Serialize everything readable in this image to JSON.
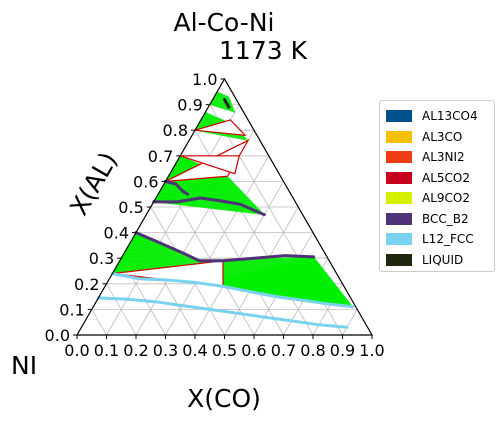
{
  "chart_data": {
    "type": "ternary-phase-diagram",
    "title": "Al-Co-Ni",
    "subtitle": "1173  K",
    "xlabel": "X(CO)",
    "ylabel": "X(AL)",
    "corner_label": "NI",
    "xticks": [
      "0.0",
      "0.1",
      "0.2",
      "0.3",
      "0.4",
      "0.5",
      "0.6",
      "0.7",
      "0.8",
      "0.9",
      "1.0"
    ],
    "yticks": [
      "0.0",
      "0.1",
      "0.2",
      "0.3",
      "0.4",
      "0.5",
      "0.6",
      "0.7",
      "0.8",
      "0.9",
      "1.0"
    ],
    "xlim": [
      0,
      1
    ],
    "ylim": [
      0,
      1
    ],
    "grid": true,
    "legend_position": "right",
    "legend": [
      {
        "name": "AL13CO4",
        "color": "#00508c"
      },
      {
        "name": "AL3CO",
        "color": "#f5c000"
      },
      {
        "name": "AL3NI2",
        "color": "#f03c14"
      },
      {
        "name": "AL5CO2",
        "color": "#c8001e"
      },
      {
        "name": "AL9CO2",
        "color": "#d7f000"
      },
      {
        "name": "BCC_B2",
        "color": "#503278"
      },
      {
        "name": "L12_FCC",
        "color": "#78d2f0"
      },
      {
        "name": "LIQUID",
        "color": "#1e280f"
      }
    ],
    "phase_boundaries": [
      {
        "phase": "L12_FCC",
        "color": "#78d2f0",
        "points": [
          [
            0.0,
            0.24
          ],
          [
            0.1,
            0.22
          ],
          [
            0.2,
            0.215
          ],
          [
            0.3,
            0.205
          ],
          [
            0.4,
            0.19
          ],
          [
            0.5,
            0.17
          ],
          [
            0.6,
            0.15
          ],
          [
            0.7,
            0.135
          ],
          [
            0.8,
            0.12
          ],
          [
            0.88,
            0.11
          ]
        ]
      },
      {
        "phase": "L12_FCC",
        "color": "#78d2f0",
        "points": [
          [
            0.0,
            0.145
          ],
          [
            0.1,
            0.14
          ],
          [
            0.2,
            0.13
          ],
          [
            0.3,
            0.115
          ],
          [
            0.4,
            0.1
          ],
          [
            0.5,
            0.085
          ],
          [
            0.6,
            0.07
          ],
          [
            0.7,
            0.055
          ],
          [
            0.8,
            0.04
          ],
          [
            0.9,
            0.03
          ]
        ]
      },
      {
        "phase": "BCC_B2",
        "color": "#503278",
        "points": [
          [
            0.0,
            0.4
          ],
          [
            0.1,
            0.36
          ],
          [
            0.2,
            0.32
          ],
          [
            0.27,
            0.29
          ],
          [
            0.35,
            0.29
          ],
          [
            0.45,
            0.3
          ],
          [
            0.55,
            0.31
          ],
          [
            0.65,
            0.305
          ]
        ]
      },
      {
        "phase": "BCC_B2",
        "color": "#503278",
        "points": [
          [
            0.0,
            0.52
          ],
          [
            0.08,
            0.52
          ],
          [
            0.15,
            0.535
          ],
          [
            0.22,
            0.525
          ],
          [
            0.3,
            0.51
          ],
          [
            0.4,
            0.47
          ]
        ]
      },
      {
        "phase": "BCC_B2",
        "color": "#503278",
        "points": [
          [
            0.0,
            0.6
          ],
          [
            0.04,
            0.59
          ],
          [
            0.08,
            0.56
          ],
          [
            0.1,
            0.55
          ]
        ]
      },
      {
        "phase": "LIQUID",
        "color": "#1e280f",
        "points": [
          [
            0.04,
            0.92
          ],
          [
            0.06,
            0.9
          ],
          [
            0.07,
            0.89
          ]
        ]
      }
    ],
    "two_phase_regions": [
      {
        "polygon": [
          [
            0.0,
            0.24
          ],
          [
            0.27,
            0.29
          ],
          [
            0.65,
            0.305
          ],
          [
            0.88,
            0.11
          ],
          [
            0.3,
            0.205
          ]
        ]
      },
      {
        "polygon": [
          [
            0.0,
            0.4
          ],
          [
            0.27,
            0.29
          ],
          [
            0.35,
            0.29
          ],
          [
            0.3,
            0.205
          ],
          [
            0.0,
            0.24
          ]
        ]
      },
      {
        "polygon": [
          [
            0.0,
            0.52
          ],
          [
            0.4,
            0.47
          ],
          [
            0.2,
            0.62
          ],
          [
            0.0,
            0.7
          ]
        ]
      },
      {
        "polygon": [
          [
            0.0,
            0.8
          ],
          [
            0.2,
            0.76
          ],
          [
            0.1,
            0.83
          ],
          [
            0.0,
            0.87
          ]
        ]
      },
      {
        "polygon": [
          [
            0.0,
            0.9
          ],
          [
            0.1,
            0.87
          ],
          [
            0.05,
            0.93
          ],
          [
            0.0,
            0.95
          ]
        ]
      }
    ],
    "three_phase_triangles": [
      {
        "points": [
          [
            0.0,
            0.24
          ],
          [
            0.35,
            0.29
          ],
          [
            0.4,
            0.19
          ]
        ]
      },
      {
        "points": [
          [
            0.0,
            0.6
          ],
          [
            0.2,
            0.76
          ],
          [
            0.2,
            0.62
          ]
        ]
      },
      {
        "points": [
          [
            0.0,
            0.7
          ],
          [
            0.2,
            0.7
          ],
          [
            0.22,
            0.63
          ]
        ]
      },
      {
        "points": [
          [
            0.0,
            0.8
          ],
          [
            0.18,
            0.78
          ],
          [
            0.1,
            0.84
          ]
        ]
      }
    ]
  }
}
